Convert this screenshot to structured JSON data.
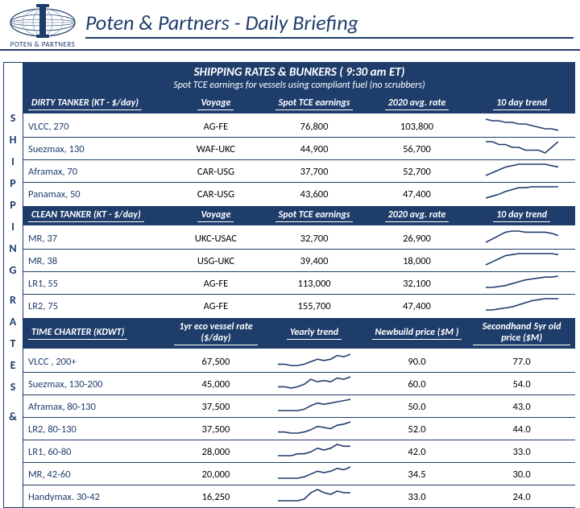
{
  "header": {
    "company": "POTEN & PARTNERS",
    "title": "Poten & Partners - Daily Briefing"
  },
  "side_label": "SHIPPING RATES &",
  "section": {
    "title": "SHIPPING RATES & BUNKERS ( 9:30 am ET)",
    "subtitle": "Spot TCE earnings for vessels using compliant fuel (no scrubbers)"
  },
  "dirty": {
    "headers": [
      "DIRTY TANKER (KT - $/day)",
      "Voyage",
      "Spot TCE earnings",
      "2020 avg. rate",
      "10 day trend"
    ],
    "rows": [
      {
        "name": "VLCC, 270",
        "voyage": "AG-FE",
        "spot": "76,800",
        "avg": "103,800",
        "spark": [
          15,
          14,
          14,
          13,
          13,
          12,
          12,
          11,
          10,
          9,
          9,
          8
        ]
      },
      {
        "name": "Suezmax, 130",
        "voyage": "WAF-UKC",
        "spot": "44,900",
        "avg": "56,700",
        "spark": [
          12,
          12,
          11,
          11,
          10,
          10,
          9,
          9,
          9,
          8,
          10,
          12
        ]
      },
      {
        "name": "Aframax, 70",
        "voyage": "CAR-USG",
        "spot": "37,700",
        "avg": "52,700",
        "spark": [
          6,
          8,
          10,
          12,
          13,
          14,
          14,
          14,
          14,
          14,
          13,
          12
        ]
      },
      {
        "name": "Panamax, 50",
        "voyage": "CAR-USG",
        "spot": "43,600",
        "avg": "47,400",
        "spark": [
          2,
          4,
          6,
          9,
          11,
          13,
          13,
          14,
          14,
          14,
          14,
          14
        ]
      }
    ]
  },
  "clean": {
    "headers": [
      "CLEAN TANKER (KT - $/day)",
      "Voyage",
      "Spot TCE earnings",
      "2020 avg. rate",
      "10 day trend"
    ],
    "rows": [
      {
        "name": "MR, 37",
        "voyage": "UKC-USAC",
        "spot": "32,700",
        "avg": "26,900",
        "spark": [
          4,
          7,
          10,
          13,
          14,
          14,
          13,
          13,
          13,
          13,
          12,
          10
        ]
      },
      {
        "name": "MR, 38",
        "voyage": "USG-UKC",
        "spot": "39,400",
        "avg": "18,000",
        "spark": [
          3,
          6,
          9,
          12,
          13,
          14,
          14,
          14,
          14,
          14,
          14,
          13
        ]
      },
      {
        "name": "LR1, 55",
        "voyage": "AG-FE",
        "spot": "113,000",
        "avg": "32,100",
        "spark": [
          2,
          2,
          3,
          4,
          6,
          8,
          10,
          11,
          12,
          13,
          13,
          14
        ]
      },
      {
        "name": "LR2, 75",
        "voyage": "AG-FE",
        "spot": "155,700",
        "avg": "47,400",
        "spark": [
          2,
          2,
          3,
          4,
          5,
          7,
          9,
          11,
          12,
          13,
          13,
          13
        ]
      }
    ]
  },
  "tc": {
    "headers": [
      "TIME CHARTER (KDWT)",
      "1yr eco vessel rate ($/day)",
      "Yearly trend",
      "Newbuild price ($M )",
      "Secondhand 5yr old price ($M)"
    ],
    "rows": [
      {
        "name": "VLCC , 200+",
        "rate": "67,500",
        "nb": "90.0",
        "sh": "77.0",
        "spark": [
          6,
          6,
          5,
          5,
          6,
          8,
          10,
          9,
          10,
          13,
          12,
          14
        ]
      },
      {
        "name": "Suezmax, 130-200",
        "rate": "45,000",
        "nb": "60.0",
        "sh": "54.0",
        "spark": [
          5,
          5,
          4,
          5,
          7,
          11,
          9,
          10,
          9,
          12,
          11,
          13
        ]
      },
      {
        "name": "Aframax, 80-130",
        "rate": "37,500",
        "nb": "50.0",
        "sh": "43.0",
        "spark": [
          5,
          5,
          5,
          5,
          6,
          9,
          11,
          10,
          11,
          12,
          13,
          14
        ]
      },
      {
        "name": "LR2, 80-130",
        "rate": "37,500",
        "nb": "52.0",
        "sh": "44.0",
        "spark": [
          5,
          5,
          4,
          4,
          5,
          7,
          10,
          9,
          8,
          11,
          12,
          14
        ]
      },
      {
        "name": "LR1, 60-80",
        "rate": "28,000",
        "nb": "42.0",
        "sh": "33.0",
        "spark": [
          7,
          7,
          7,
          8,
          8,
          9,
          11,
          10,
          11,
          13,
          12,
          12
        ]
      },
      {
        "name": "MR, 42-60",
        "rate": "20,000",
        "nb": "34.5",
        "sh": "30.0",
        "spark": [
          5,
          5,
          5,
          5,
          6,
          8,
          10,
          9,
          10,
          12,
          11,
          13
        ]
      },
      {
        "name": "Handymax. 30-42",
        "rate": "16,250",
        "nb": "33.0",
        "sh": "24.0",
        "spark": [
          5,
          5,
          5,
          5,
          6,
          10,
          12,
          10,
          9,
          11,
          10,
          10
        ]
      }
    ]
  },
  "style": {
    "brand_color": "#1f3d6b",
    "spark_color": "#1f3d6b",
    "row_border": "#1f3d6b",
    "font": "Calibri, Arial, sans-serif"
  }
}
